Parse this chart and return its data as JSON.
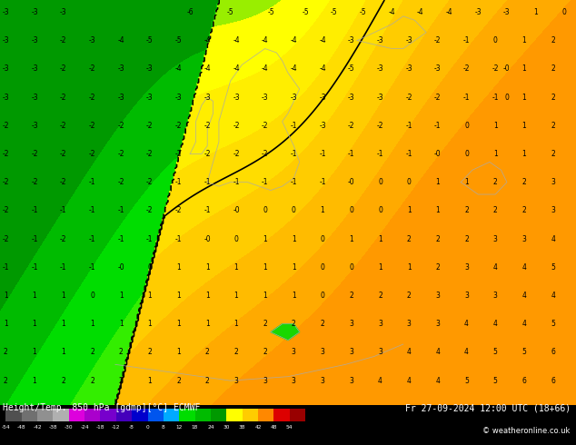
{
  "title_bottom": "Height/Temp. 850 hPa [gdmp][°C] ECMWF",
  "date_str": "Fr 27-09-2024 12:00 UTC (18+66)",
  "copyright": "© weatheronline.co.uk",
  "colorbar_levels": [
    -54,
    -48,
    -42,
    -38,
    -30,
    -24,
    -18,
    -12,
    -8,
    0,
    8,
    12,
    18,
    24,
    30,
    38,
    42,
    48,
    54
  ],
  "colorbar_colors": [
    "#505050",
    "#707070",
    "#909090",
    "#b0b0b0",
    "#dd00dd",
    "#aa00cc",
    "#7700cc",
    "#4400bb",
    "#0000cc",
    "#0055ee",
    "#00aaff",
    "#00dd00",
    "#00bb00",
    "#009900",
    "#ffff00",
    "#ffcc00",
    "#ff8800",
    "#dd0000",
    "#990000"
  ],
  "green_dark": "#00cc00",
  "green_bright": "#33ee00",
  "green_light": "#88ee00",
  "yellow": "#ffff00",
  "yellow_orange": "#ffdd00",
  "fig_width": 6.34,
  "fig_height": 4.9,
  "dpi": 100,
  "map_bg": "#33cc00",
  "bottom_bg": "#000000",
  "text_color_map": "#000000",
  "text_color_bar": "#ffffff"
}
